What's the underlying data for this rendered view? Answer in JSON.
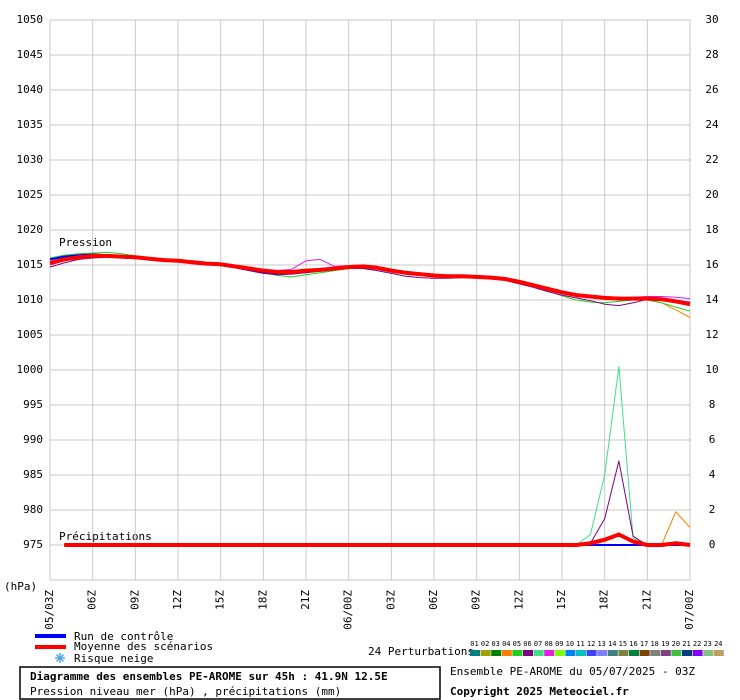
{
  "chart_data": {
    "type": "line",
    "ylabel": "(hPa)",
    "pressure_label": "Pression",
    "precip_label": "Précipitations",
    "categories": [
      "05/03Z",
      null,
      null,
      "06Z",
      null,
      null,
      "09Z",
      null,
      null,
      "12Z",
      null,
      null,
      "15Z",
      null,
      null,
      "18Z",
      null,
      null,
      "21Z",
      null,
      null,
      "06/00Z",
      null,
      null,
      "03Z",
      null,
      null,
      "06Z",
      null,
      null,
      "09Z",
      null,
      null,
      "12Z",
      null,
      null,
      "15Z",
      null,
      null,
      "18Z",
      null,
      null,
      "21Z",
      null,
      null,
      "07/00Z"
    ],
    "ylim": [
      970,
      1050
    ],
    "yticks": [
      975,
      980,
      985,
      990,
      995,
      1000,
      1005,
      1010,
      1015,
      1020,
      1025,
      1030,
      1035,
      1040,
      1045,
      1050
    ],
    "y2lim": [
      -2,
      30
    ],
    "y2ticks": [
      0,
      2,
      4,
      6,
      8,
      10,
      12,
      14,
      16,
      18,
      20,
      22,
      24,
      26,
      28,
      30
    ],
    "grid": true,
    "series": [
      {
        "name": "08",
        "color": "#e020e0",
        "width": 1,
        "values": [
          1015.0,
          1015.6,
          1016.0,
          1016.2,
          1016.4,
          1016.3,
          1016.2,
          1016.0,
          1015.8,
          1015.7,
          1015.6,
          1015.4,
          1015.2,
          1014.9,
          1014.6,
          1014.3,
          1014.2,
          1014.4,
          1015.6,
          1015.8,
          1014.8,
          1014.9,
          1015.0,
          1014.7,
          1014.4,
          1014.0,
          1013.8,
          1013.6,
          1013.5,
          1013.5,
          1013.4,
          1013.3,
          1013.0,
          1012.5,
          1012.0,
          1011.5,
          1011.0,
          1010.6,
          1010.5,
          1010.4,
          1010.3,
          1010.4,
          1010.5,
          1010.5,
          1010.4,
          1010.2
        ]
      },
      {
        "name": "04",
        "color": "#ff8000",
        "width": 1,
        "values": [
          1015.5,
          1015.9,
          1016.1,
          1016.2,
          1016.2,
          1016.1,
          1016.0,
          1015.8,
          1015.6,
          1015.5,
          1015.3,
          1015.1,
          1015.0,
          1014.7,
          1014.4,
          1014.1,
          1013.9,
          1013.9,
          1014.1,
          1014.2,
          1014.4,
          1014.6,
          1014.7,
          1014.5,
          1014.1,
          1013.8,
          1013.5,
          1013.3,
          1013.2,
          1013.2,
          1013.2,
          1013.1,
          1012.9,
          1012.5,
          1012.0,
          1011.5,
          1011.0,
          1010.6,
          1010.4,
          1010.2,
          1010.1,
          1010.1,
          1010.0,
          1009.6,
          1008.6,
          1007.5
        ]
      },
      {
        "name": "05",
        "color": "#20d020",
        "width": 1,
        "values": [
          1016.0,
          1016.4,
          1016.6,
          1016.7,
          1016.8,
          1016.6,
          1016.3,
          1016.0,
          1015.8,
          1015.5,
          1015.3,
          1015.1,
          1014.9,
          1014.6,
          1014.3,
          1013.9,
          1013.5,
          1013.3,
          1013.6,
          1013.9,
          1014.2,
          1014.5,
          1014.6,
          1014.4,
          1014.0,
          1013.7,
          1013.5,
          1013.3,
          1013.2,
          1013.2,
          1013.1,
          1013.0,
          1012.8,
          1012.4,
          1011.9,
          1011.3,
          1010.6,
          1010.0,
          1009.7,
          1009.6,
          1009.8,
          1010.0,
          1010.0,
          1009.6,
          1009.0,
          1008.4
        ]
      },
      {
        "name": "06",
        "color": "#800080",
        "width": 1,
        "values": [
          1014.7,
          1015.3,
          1015.8,
          1016.0,
          1016.1,
          1016.0,
          1015.9,
          1015.8,
          1015.7,
          1015.6,
          1015.5,
          1015.3,
          1015.0,
          1014.6,
          1014.2,
          1013.8,
          1013.6,
          1013.7,
          1013.9,
          1014.1,
          1014.3,
          1014.5,
          1014.5,
          1014.2,
          1013.8,
          1013.4,
          1013.2,
          1013.1,
          1013.1,
          1013.2,
          1013.2,
          1013.1,
          1012.8,
          1012.3,
          1011.8,
          1011.2,
          1010.7,
          1010.3,
          1009.9,
          1009.4,
          1009.2,
          1009.6,
          1010.1,
          1010.3,
          1010.0,
          1009.6
        ]
      },
      {
        "name": "Run de contrôle",
        "color": "#0000ff",
        "width": 2,
        "values": [
          1015.8,
          1016.2,
          1016.4,
          1016.5,
          1016.4,
          1016.3,
          1016.1,
          1015.9,
          1015.8,
          1015.6,
          1015.3,
          1015.1,
          1015.0,
          1014.7,
          1014.3,
          1014.0,
          1013.8,
          1013.9,
          1014.1,
          1014.3,
          1014.4,
          1014.6,
          1014.7,
          1014.5,
          1014.1,
          1013.8,
          1013.6,
          1013.4,
          1013.3,
          1013.4,
          1013.4,
          1013.3,
          1013.1,
          1012.7,
          1012.2,
          1011.7,
          1011.2,
          1010.8,
          1010.6,
          1010.4,
          1010.3,
          1010.2,
          1010.3,
          1010.2,
          1009.9,
          1009.6
        ]
      },
      {
        "name": "Moyenne des scénarios",
        "color": "#ff0000",
        "width": 4,
        "values": [
          1015.3,
          1015.8,
          1016.1,
          1016.3,
          1016.3,
          1016.2,
          1016.1,
          1015.9,
          1015.7,
          1015.6,
          1015.4,
          1015.2,
          1015.1,
          1014.8,
          1014.5,
          1014.2,
          1014.0,
          1014.0,
          1014.2,
          1014.3,
          1014.5,
          1014.7,
          1014.8,
          1014.6,
          1014.2,
          1013.9,
          1013.7,
          1013.5,
          1013.4,
          1013.4,
          1013.3,
          1013.2,
          1013.0,
          1012.6,
          1012.1,
          1011.6,
          1011.1,
          1010.7,
          1010.5,
          1010.3,
          1010.2,
          1010.2,
          1010.2,
          1010.1,
          1009.8,
          1009.4
        ]
      },
      {
        "name": "07",
        "color": "#40e080",
        "width": 1,
        "axis": "y2",
        "values": [
          null,
          0,
          0,
          0,
          0,
          0,
          0,
          0,
          0,
          0,
          0,
          0,
          0,
          0,
          0,
          0,
          0,
          0,
          0,
          0,
          0,
          0,
          0,
          0,
          0,
          0,
          0,
          0,
          0,
          0,
          0,
          0,
          0,
          0,
          0,
          0,
          0,
          0,
          0.6,
          4.0,
          10.2,
          0.4,
          0,
          0,
          0,
          0
        ]
      },
      {
        "name": "06",
        "color": "#800080",
        "width": 1,
        "axis": "y2",
        "values": [
          null,
          0,
          0,
          0,
          0,
          0,
          0,
          0,
          0,
          0,
          0,
          0,
          0,
          0,
          0,
          0,
          0,
          0,
          0,
          0,
          0,
          0,
          0,
          0,
          0,
          0,
          0,
          0,
          0,
          0,
          0,
          0,
          0,
          0,
          0,
          0,
          0,
          0,
          0.1,
          1.5,
          4.8,
          0.5,
          0,
          0,
          0,
          0
        ]
      },
      {
        "name": "04",
        "color": "#ff8000",
        "width": 1,
        "axis": "y2",
        "values": [
          null,
          0,
          0,
          0,
          0,
          0,
          0,
          0,
          0,
          0,
          0,
          0,
          0,
          0,
          0,
          0,
          0,
          0,
          0,
          0,
          0,
          0,
          0,
          0,
          0,
          0,
          0,
          0,
          0,
          0,
          0,
          0,
          0,
          0,
          0,
          0,
          0,
          0,
          0,
          0,
          0,
          0,
          0,
          0,
          1.9,
          1.0
        ]
      },
      {
        "name": "Run de contrôle",
        "color": "#0000ff",
        "width": 2,
        "axis": "y2",
        "values": [
          null,
          0,
          0,
          0,
          0,
          0,
          0,
          0,
          0,
          0,
          0,
          0,
          0,
          0,
          0,
          0,
          0,
          0,
          0,
          0,
          0,
          0,
          0,
          0,
          0,
          0,
          0,
          0,
          0,
          0,
          0,
          0,
          0,
          0,
          0,
          0,
          0,
          0,
          0,
          0,
          0,
          0,
          0,
          0,
          0,
          0
        ]
      },
      {
        "name": "Moyenne des scénarios",
        "color": "#ff0000",
        "width": 4,
        "axis": "y2",
        "values": [
          null,
          0,
          0,
          0,
          0,
          0,
          0,
          0,
          0,
          0,
          0,
          0,
          0,
          0,
          0,
          0,
          0,
          0,
          0,
          0,
          0,
          0,
          0,
          0,
          0,
          0,
          0,
          0,
          0,
          0,
          0,
          0,
          0,
          0,
          0,
          0,
          0,
          0,
          0.1,
          0.3,
          0.6,
          0.2,
          0,
          0,
          0.1,
          0
        ]
      }
    ],
    "snow_label": "Risque neige",
    "perturbations": {
      "label": "24 Perturbations",
      "members": [
        {
          "name": "01",
          "color": "#008080"
        },
        {
          "name": "02",
          "color": "#a0a000"
        },
        {
          "name": "03",
          "color": "#008000"
        },
        {
          "name": "04",
          "color": "#ff8000"
        },
        {
          "name": "05",
          "color": "#20d020"
        },
        {
          "name": "06",
          "color": "#800080"
        },
        {
          "name": "07",
          "color": "#40e080"
        },
        {
          "name": "08",
          "color": "#e020e0"
        },
        {
          "name": "09",
          "color": "#80ff00"
        },
        {
          "name": "10",
          "color": "#0080ff"
        },
        {
          "name": "11",
          "color": "#00c0c0"
        },
        {
          "name": "12",
          "color": "#4040ff"
        },
        {
          "name": "13",
          "color": "#8080ff"
        },
        {
          "name": "14",
          "color": "#408080"
        },
        {
          "name": "15",
          "color": "#808040"
        },
        {
          "name": "16",
          "color": "#008040"
        },
        {
          "name": "17",
          "color": "#804000"
        },
        {
          "name": "18",
          "color": "#808080"
        },
        {
          "name": "19",
          "color": "#804080"
        },
        {
          "name": "20",
          "color": "#40c040"
        },
        {
          "name": "21",
          "color": "#004080"
        },
        {
          "name": "22",
          "color": "#8000ff"
        },
        {
          "name": "23",
          "color": "#80c080"
        },
        {
          "name": "24",
          "color": "#c0a060"
        }
      ]
    },
    "title": "Diagramme des ensembles PE-AROME sur 45h : 41.9N 12.5E",
    "subtitle": "Pression niveau mer (hPa) , précipitations (mm)",
    "run_info": "Ensemble PE-AROME du 05/07/2025 - 03Z",
    "copyright": "Copyright 2025 Meteociel.fr"
  }
}
